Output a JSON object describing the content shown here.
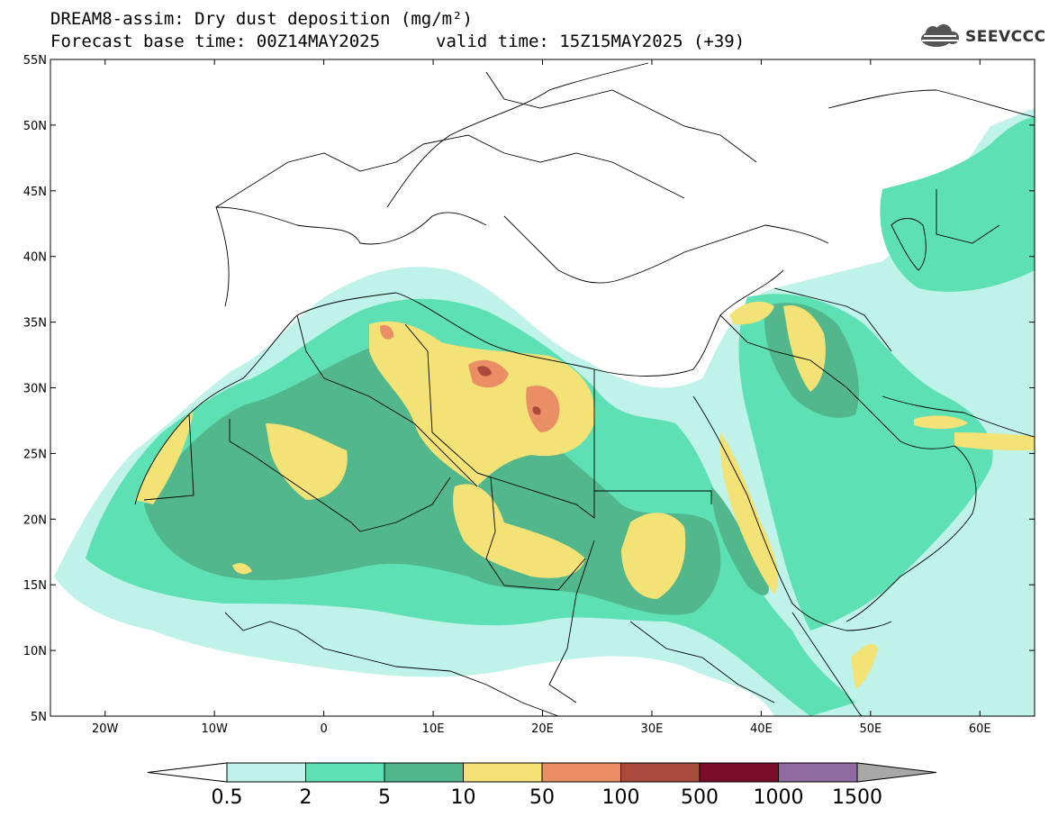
{
  "title": {
    "line1": "DREAM8-assim: Dry dust deposition (mg/m²)",
    "line2": "Forecast base time: 00Z14MAY2025",
    "valid": "valid time: 15Z15MAY2025 (+39)"
  },
  "logo": {
    "text": "SEEVCCC",
    "icon": "cloud-logo-icon"
  },
  "axes": {
    "lon_range": [
      -25,
      65
    ],
    "lat_range": [
      5,
      55
    ],
    "lon_ticks": [
      {
        "v": -20,
        "label": "20W"
      },
      {
        "v": -10,
        "label": "10W"
      },
      {
        "v": 0,
        "label": "0"
      },
      {
        "v": 10,
        "label": "10E"
      },
      {
        "v": 20,
        "label": "20E"
      },
      {
        "v": 30,
        "label": "30E"
      },
      {
        "v": 40,
        "label": "40E"
      },
      {
        "v": 50,
        "label": "50E"
      },
      {
        "v": 60,
        "label": "60E"
      }
    ],
    "lat_ticks": [
      {
        "v": 5,
        "label": "5N"
      },
      {
        "v": 10,
        "label": "10N"
      },
      {
        "v": 15,
        "label": "15N"
      },
      {
        "v": 20,
        "label": "20N"
      },
      {
        "v": 25,
        "label": "25N"
      },
      {
        "v": 30,
        "label": "30N"
      },
      {
        "v": 35,
        "label": "35N"
      },
      {
        "v": 40,
        "label": "40N"
      },
      {
        "v": 45,
        "label": "45N"
      },
      {
        "v": 50,
        "label": "50N"
      },
      {
        "v": 55,
        "label": "55N"
      }
    ]
  },
  "colorbar": {
    "colors": [
      "#bff2e8",
      "#5de0b4",
      "#52b78c",
      "#f3e275",
      "#ea8e65",
      "#a84a3c",
      "#7a0d27",
      "#8e6aa0"
    ],
    "labels": [
      "0.5",
      "2",
      "5",
      "10",
      "50",
      "100",
      "500",
      "1000",
      "1500"
    ],
    "under_color": "#ffffff",
    "over_color": "#a8a8a8"
  },
  "legend_colors": {
    "c1": "#bff2e8",
    "c2": "#5de0b4",
    "c3": "#52b78c",
    "c4": "#f3e275",
    "c5": "#ea8e65",
    "c6": "#a84a3c"
  }
}
